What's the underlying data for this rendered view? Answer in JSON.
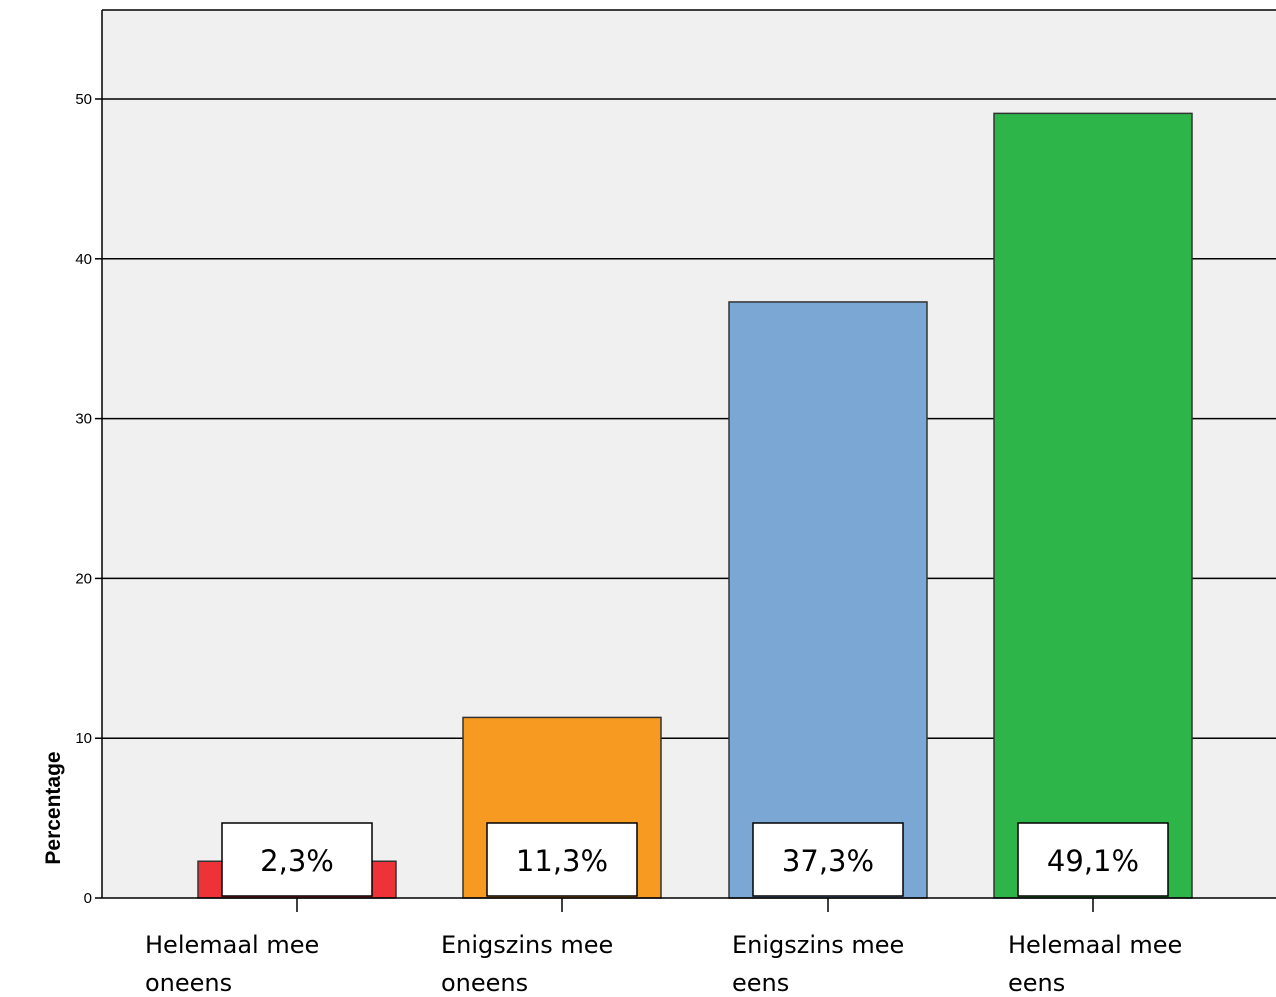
{
  "chart_data": {
    "type": "bar",
    "title": "",
    "xlabel": "",
    "ylabel": "Percentage",
    "ylim": [
      0,
      55
    ],
    "yticks": [
      0,
      10,
      20,
      30,
      40,
      50
    ],
    "grid": true,
    "categories": [
      [
        "Helemaal mee",
        "oneens"
      ],
      [
        "Enigszins mee",
        "oneens"
      ],
      [
        "Enigszins mee",
        "eens"
      ],
      [
        "Helemaal mee",
        "eens"
      ]
    ],
    "values": [
      2.3,
      11.3,
      37.3,
      49.1
    ],
    "data_labels": [
      "2,3%",
      "11,3%",
      "37,3%",
      "49,1%"
    ],
    "colors": [
      "#ee3338",
      "#f79a21",
      "#7ba7d4",
      "#2eb54a"
    ]
  }
}
